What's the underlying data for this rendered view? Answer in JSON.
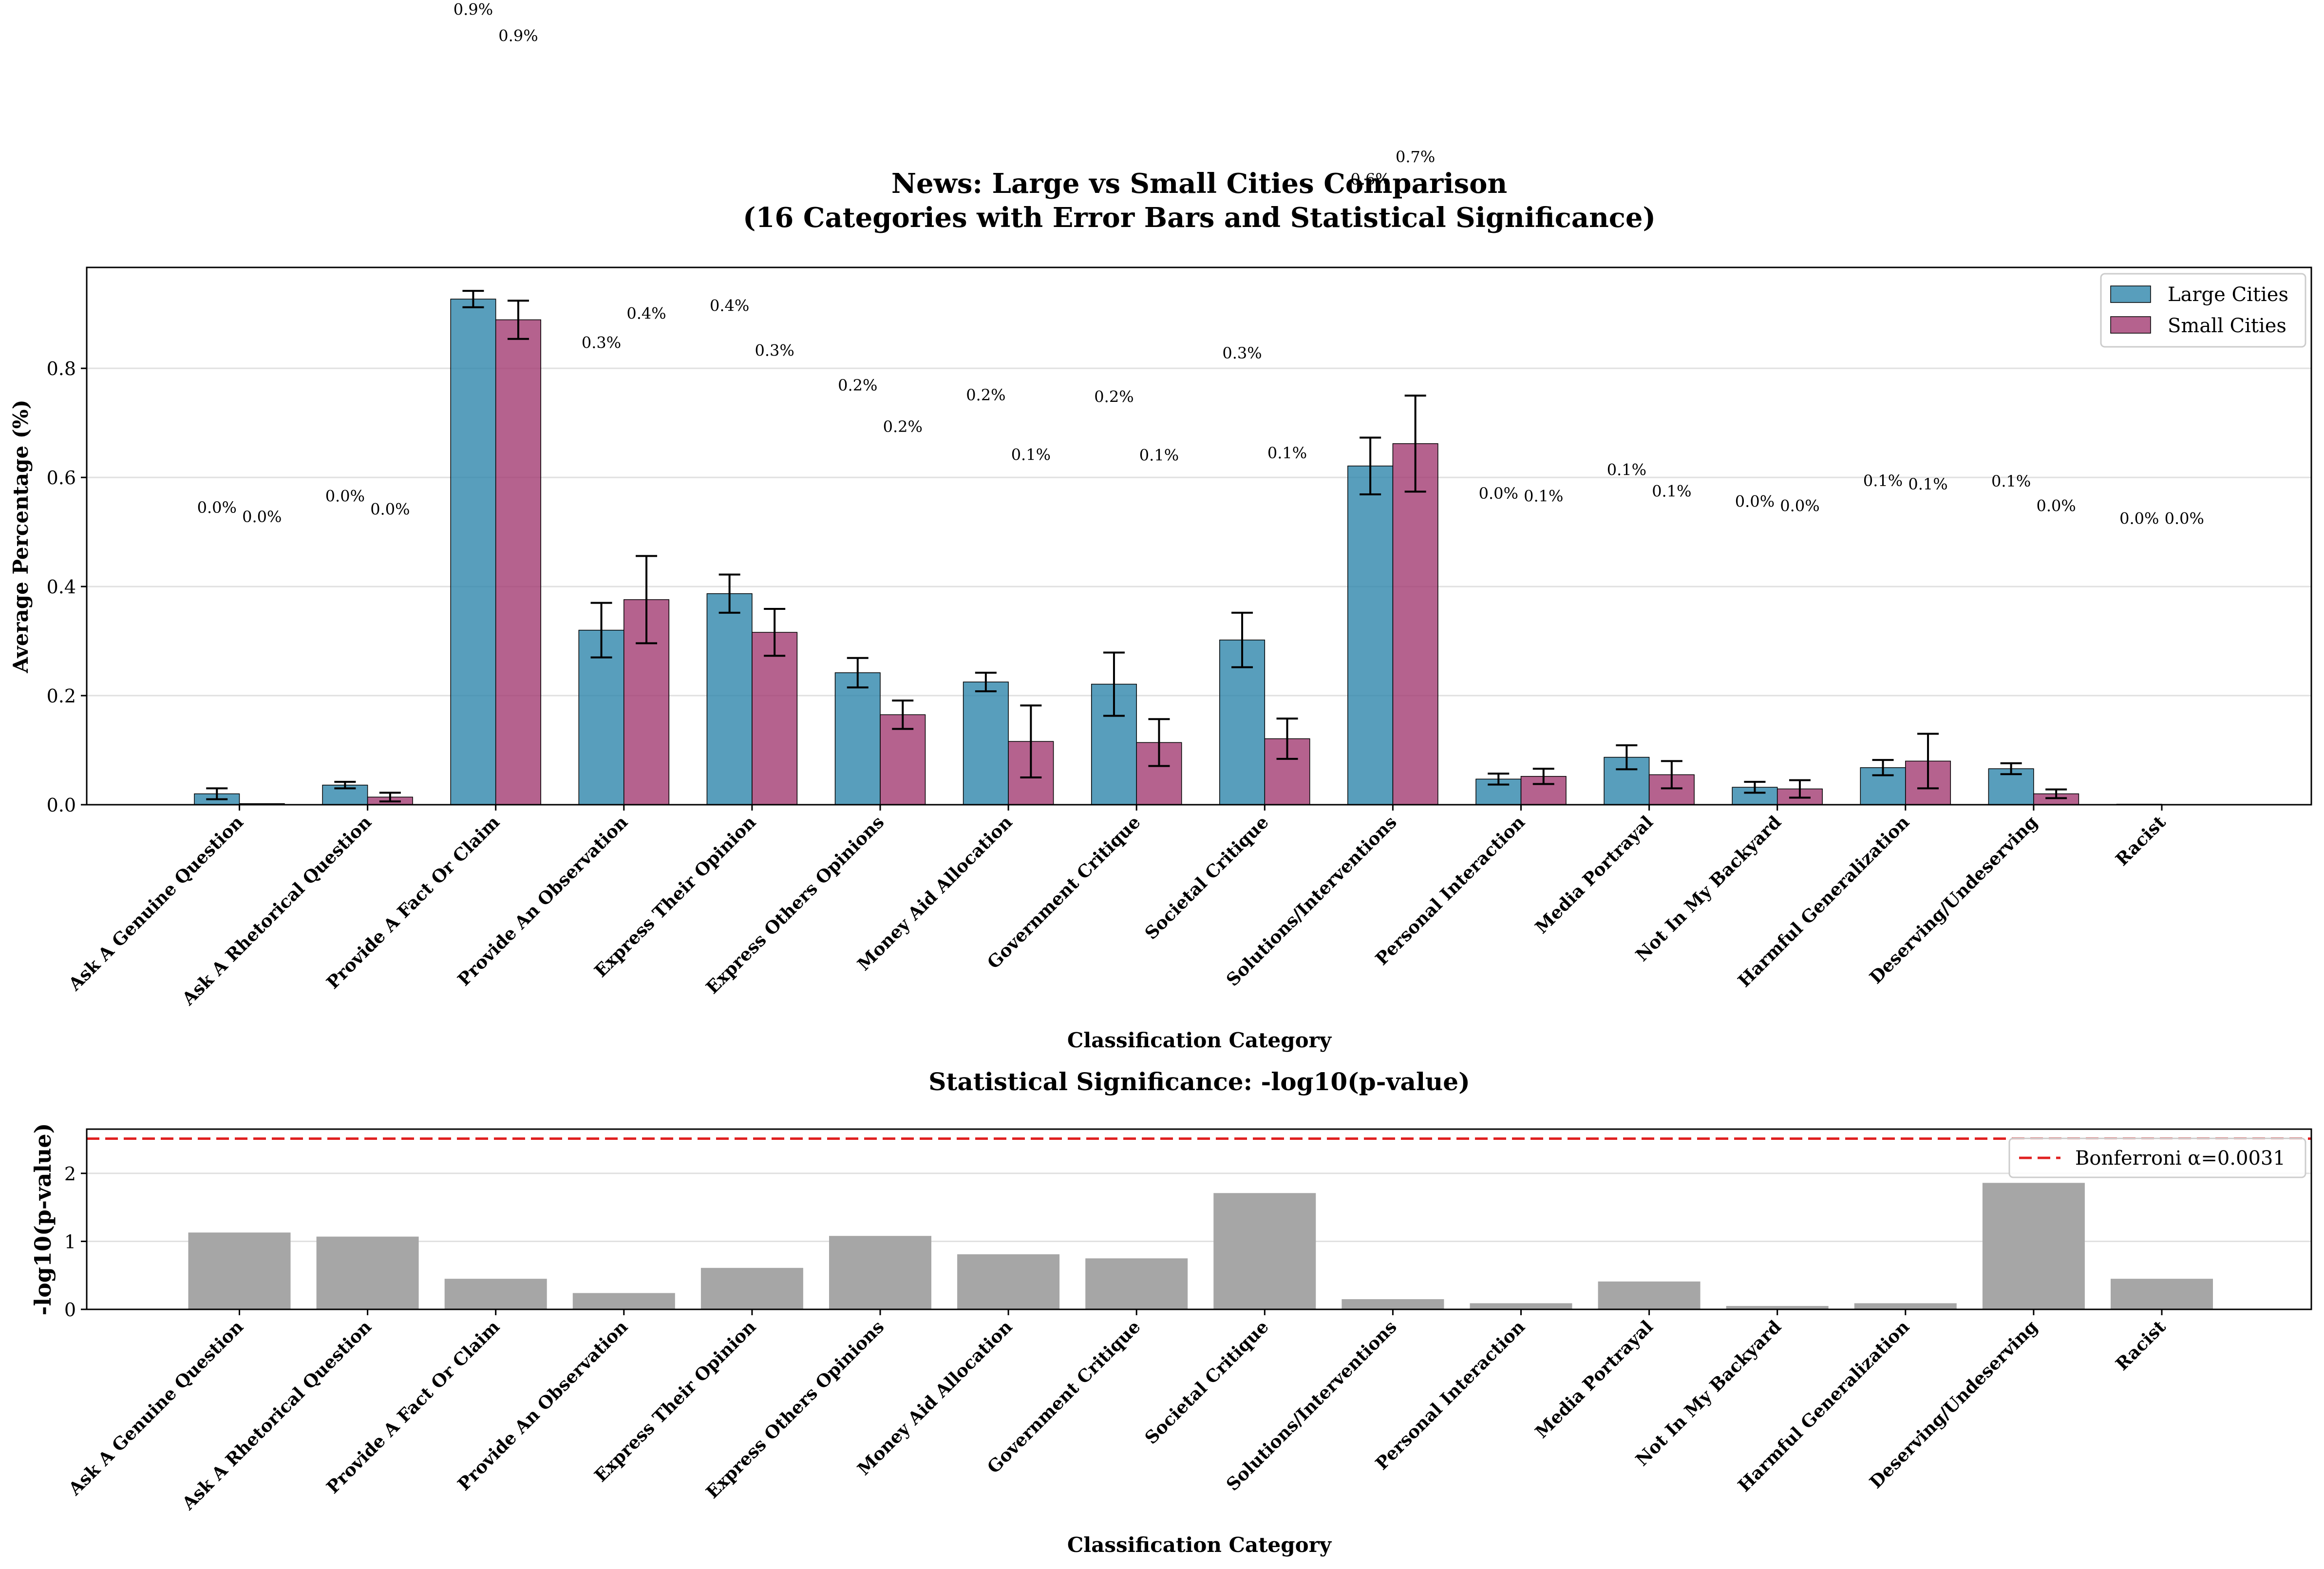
{
  "chart_data": [
    {
      "type": "bar",
      "title": "News: Large vs Small Cities Comparison\n(16 Categories with Error Bars and Statistical Significance)",
      "xlabel": "Classification Category",
      "ylabel": "Average Percentage (%)",
      "ylim": [
        0,
        0.985
      ],
      "yticks": [
        "0.0",
        "0.2",
        "0.4",
        "0.6",
        "0.8"
      ],
      "grid": true,
      "legend_position": "top-right",
      "categories": [
        "Ask A Genuine Question",
        "Ask A Rhetorical Question",
        "Provide A Fact Or Claim",
        "Provide An Observation",
        "Express Their Opinion",
        "Express Others Opinions",
        "Money Aid Allocation",
        "Government Critique",
        "Societal Critique",
        "Solutions/Interventions",
        "Personal Interaction",
        "Media Portrayal",
        "Not In My Backyard",
        "Harmful Generalization",
        "Deserving/Undeserving",
        "Racist"
      ],
      "series": [
        {
          "name": "Large Cities",
          "color": "#2e86ab",
          "values": [
            0.02,
            0.036,
            0.927,
            0.32,
            0.387,
            0.242,
            0.225,
            0.221,
            0.302,
            0.621,
            0.047,
            0.087,
            0.032,
            0.068,
            0.066,
            0.001
          ],
          "errors": [
            0.01,
            0.006,
            0.015,
            0.05,
            0.035,
            0.027,
            0.017,
            0.058,
            0.05,
            0.052,
            0.01,
            0.022,
            0.01,
            0.014,
            0.01,
            0.001
          ],
          "labels": [
            "0.0%",
            "0.0%",
            "0.9%",
            "0.3%",
            "0.4%",
            "0.2%",
            "0.2%",
            "0.2%",
            "0.3%",
            "0.6%",
            "0.0%",
            "0.1%",
            "0.0%",
            "0.1%",
            "0.1%",
            "0.0%"
          ],
          "label_y": [
            0.535,
            0.556,
            1.448,
            0.837,
            0.905,
            0.759,
            0.741,
            0.738,
            0.818,
            1.137,
            0.561,
            0.604,
            0.546,
            0.584,
            0.583,
            0.515
          ]
        },
        {
          "name": "Small Cities",
          "color": "#a23b72",
          "values": [
            0.002,
            0.014,
            0.889,
            0.376,
            0.316,
            0.165,
            0.116,
            0.114,
            0.121,
            0.662,
            0.052,
            0.055,
            0.029,
            0.08,
            0.02,
            0.0
          ],
          "errors": [
            0.001,
            0.008,
            0.035,
            0.08,
            0.043,
            0.026,
            0.066,
            0.043,
            0.037,
            0.088,
            0.014,
            0.025,
            0.016,
            0.05,
            0.008,
            0.0
          ],
          "labels": [
            "0.0%",
            "0.0%",
            "0.9%",
            "0.4%",
            "0.3%",
            "0.2%",
            "0.1%",
            "0.1%",
            "0.1%",
            "0.7%",
            "0.1%",
            "0.1%",
            "0.0%",
            "0.1%",
            "0.0%",
            "0.0%"
          ],
          "label_y": [
            0.518,
            0.532,
            1.4,
            0.891,
            0.823,
            0.683,
            0.632,
            0.631,
            0.635,
            1.178,
            0.556,
            0.565,
            0.538,
            0.578,
            0.538,
            0.515
          ]
        }
      ]
    },
    {
      "type": "bar",
      "title": "Statistical Significance: -log10(p-value)",
      "xlabel": "Classification Category",
      "ylabel": "-log10(p-value)",
      "ylim": [
        0,
        2.65
      ],
      "yticks": [
        "0",
        "1",
        "2"
      ],
      "grid": true,
      "legend_position": "top-right",
      "categories": [
        "Ask A Genuine Question",
        "Ask A Rhetorical Question",
        "Provide A Fact Or Claim",
        "Provide An Observation",
        "Express Their Opinion",
        "Express Others Opinions",
        "Money Aid Allocation",
        "Government Critique",
        "Societal Critique",
        "Solutions/Interventions",
        "Personal Interaction",
        "Media Portrayal",
        "Not In My Backyard",
        "Harmful Generalization",
        "Deserving/Undeserving",
        "Racist"
      ],
      "values": [
        1.13,
        1.07,
        0.45,
        0.24,
        0.61,
        1.08,
        0.81,
        0.75,
        1.71,
        0.15,
        0.09,
        0.41,
        0.05,
        0.09,
        1.86,
        0.45
      ],
      "bar_color": "#a6a6a6",
      "threshold": {
        "label": "Bonferroni α=0.0031",
        "value": 2.51,
        "color": "#e02020"
      }
    }
  ]
}
